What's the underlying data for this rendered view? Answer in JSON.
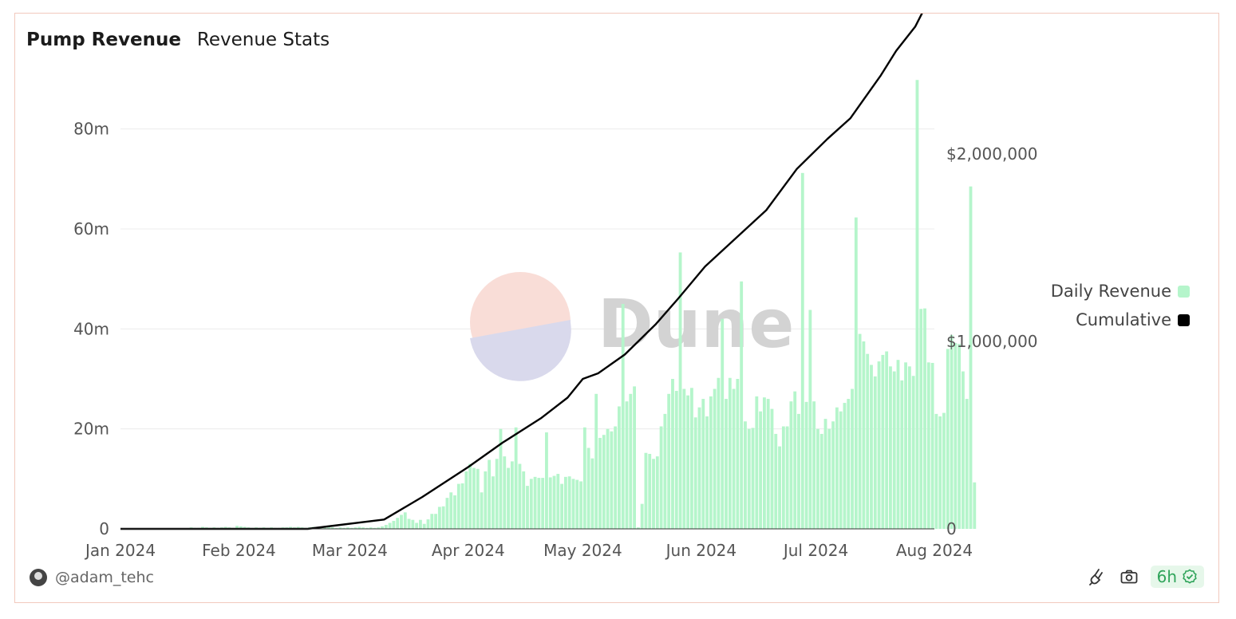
{
  "header": {
    "title": "Pump Revenue",
    "subtitle": "Revenue Stats"
  },
  "watermark": {
    "text": "Dune"
  },
  "legend": [
    {
      "label": "Daily Revenue",
      "color": "#b5f5cb"
    },
    {
      "label": "Cumulative",
      "color": "#000000"
    }
  ],
  "footer": {
    "author": "@adam_tehc",
    "refresh": "6h",
    "icons": [
      "plug-icon",
      "camera-icon",
      "check-circle-icon"
    ]
  },
  "chart_data": {
    "type": "bar",
    "x_ticks": [
      "Jan 2024",
      "Feb 2024",
      "Mar 2024",
      "Apr 2024",
      "May 2024",
      "Jun 2024",
      "Jul 2024",
      "Aug 2024"
    ],
    "y_left_ticks": [
      "0",
      "20m",
      "40m",
      "60m",
      "80m"
    ],
    "y_left_tick_values": [
      0,
      20000000,
      40000000,
      60000000,
      80000000
    ],
    "y_left_range": [
      0,
      90000000
    ],
    "y_right_ticks": [
      "0",
      "$1,000,000",
      "$2,000,000"
    ],
    "y_right_tick_values": [
      0,
      1000000,
      2000000
    ],
    "y_right_range": [
      0,
      2400000
    ],
    "x_start": "2024-01-01",
    "x_end": "2024-08-01",
    "grid": true,
    "legend_position": "right",
    "series": [
      {
        "name": "Daily Revenue",
        "color": "#b5f5cb",
        "start_date": "2024-01-19",
        "values": [
          0.3,
          0.2,
          0.2,
          0.4,
          0.3,
          0.2,
          0.3,
          0.2,
          0.3,
          0.4,
          0.3,
          0.2,
          0.6,
          0.5,
          0.4,
          0.3,
          0.2,
          0.3,
          0.2,
          0.3,
          0.2,
          0.3,
          0.2,
          0.2,
          0.3,
          0.3,
          0.4,
          0.3,
          0.4,
          0.3,
          0.2,
          0.3,
          0.4,
          0.3,
          0.2,
          0.3,
          0.4,
          0.3,
          0.2,
          0.3,
          0.2,
          0.3,
          0.2,
          0.3,
          0.4,
          0.3,
          0.2,
          0.3,
          0.2,
          0.3,
          0.5,
          0.8,
          1.2,
          1.6,
          2.2,
          2.8,
          3.3,
          2,
          1.8,
          1.2,
          1.8,
          1,
          1.9,
          3,
          3,
          4.4,
          4.5,
          6.2,
          7.3,
          6.7,
          9,
          9.1,
          11.5,
          13,
          12.2,
          12,
          7.3,
          11.5,
          13.8,
          10.5,
          14,
          20,
          14.5,
          12.2,
          13.5,
          20.3,
          13,
          11.5,
          8.6,
          10,
          10.4,
          10.2,
          10.2,
          19.3,
          10.3,
          10.6,
          11,
          9,
          10.4,
          10.5,
          10,
          9.8,
          9.5,
          20.3,
          16.2,
          14.1,
          27,
          18.2,
          18.8,
          20,
          19.5,
          20.5,
          24.5,
          45,
          25.5,
          27,
          28.5,
          0.3,
          5,
          15.2,
          15,
          14,
          14.5,
          20.5,
          23,
          27,
          30,
          27.6,
          55.3,
          28,
          26.7,
          28.2,
          22.3,
          24.3,
          26,
          22.5,
          26.5,
          28,
          30.2,
          42,
          26,
          30.2,
          28,
          30,
          49.5,
          21.5,
          20,
          20.2,
          26.5,
          23.5,
          26.3,
          26,
          24,
          19,
          16.5,
          20.5,
          20.5,
          25.5,
          27.5,
          23,
          71.2,
          25.4,
          43.8,
          25.5,
          20,
          19,
          22,
          20,
          21.5,
          24.3,
          23.5,
          25.2,
          26,
          28,
          62.3,
          39,
          37.5,
          35,
          32.8,
          30.5,
          33.5,
          34.8,
          35.5,
          32.5,
          31.5,
          33.8,
          29.7,
          33.3,
          32.5,
          30.6,
          89.8,
          44,
          44.1,
          33.3,
          33.2,
          23,
          22.5,
          23.2,
          36,
          38.8,
          37.2,
          37,
          31.5,
          26,
          68.5,
          9.3
        ]
      },
      {
        "name": "Cumulative",
        "color": "#000000",
        "points": [
          [
            "2024-01-01",
            0
          ],
          [
            "2024-02-19",
            0
          ],
          [
            "2024-03-10",
            50000
          ],
          [
            "2024-03-20",
            170000
          ],
          [
            "2024-04-01",
            330000
          ],
          [
            "2024-04-10",
            460000
          ],
          [
            "2024-04-20",
            590000
          ],
          [
            "2024-04-27",
            700000
          ],
          [
            "2024-05-01",
            800000
          ],
          [
            "2024-05-05",
            830000
          ],
          [
            "2024-05-12",
            930000
          ],
          [
            "2024-05-20",
            1090000
          ],
          [
            "2024-05-26",
            1230000
          ],
          [
            "2024-06-02",
            1400000
          ],
          [
            "2024-06-10",
            1550000
          ],
          [
            "2024-06-18",
            1700000
          ],
          [
            "2024-06-26",
            1920000
          ],
          [
            "2024-07-04",
            2080000
          ],
          [
            "2024-07-10",
            2190000
          ],
          [
            "2024-07-18",
            2420000
          ],
          [
            "2024-07-22",
            2550000
          ],
          [
            "2024-07-27",
            2680000
          ],
          [
            "2024-08-01",
            2880000
          ]
        ]
      }
    ]
  }
}
